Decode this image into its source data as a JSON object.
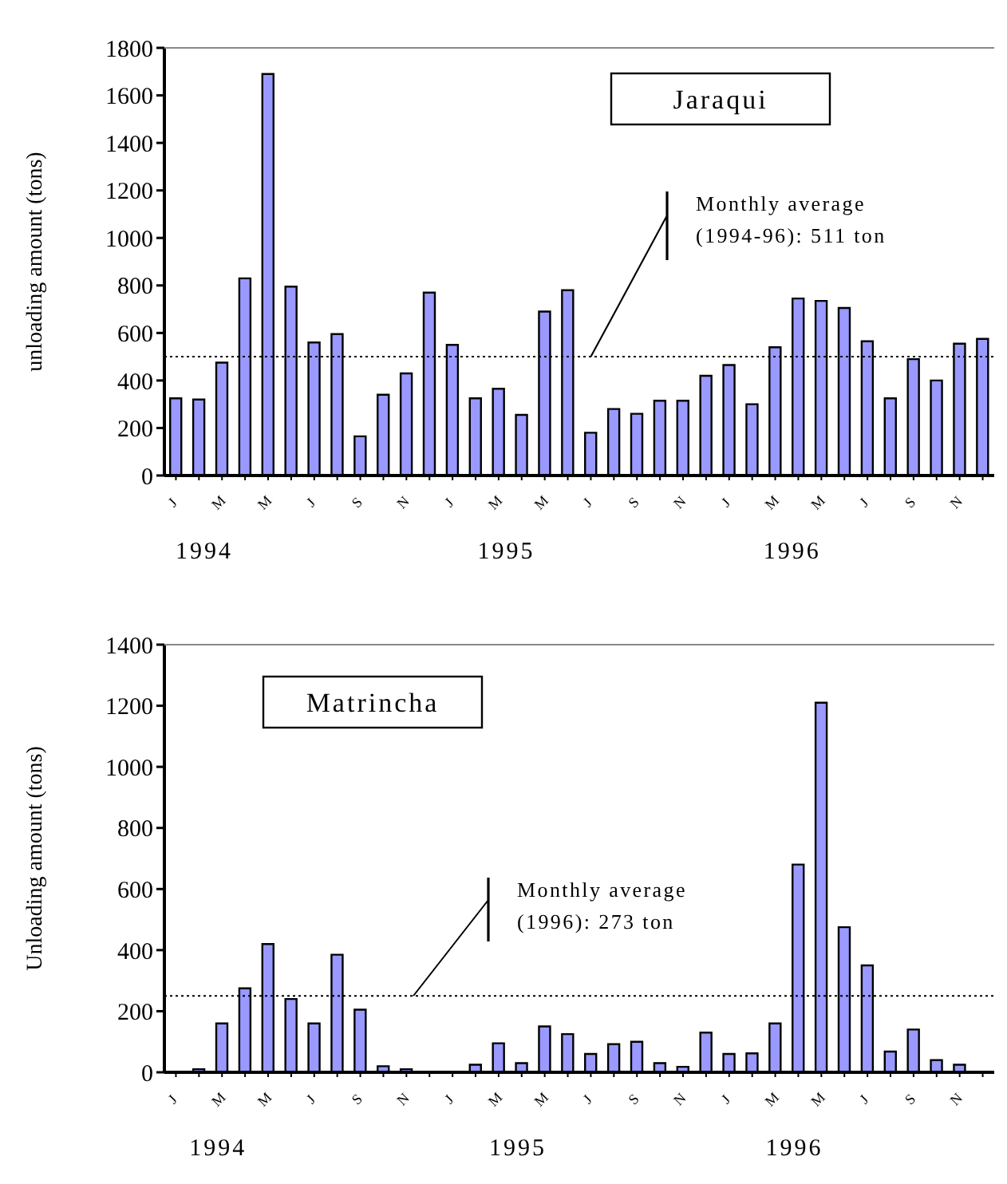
{
  "chart_data": [
    {
      "type": "bar",
      "title": "Jaraqui",
      "ylabel": "unloading amount (tons)",
      "categories": [
        "J",
        null,
        "M",
        null,
        "M",
        null,
        "J",
        null,
        "S",
        null,
        "N",
        null,
        "J",
        null,
        "M",
        null,
        "M",
        null,
        "J",
        null,
        "S",
        null,
        "N",
        null,
        "J",
        null,
        "M",
        null,
        "M",
        null,
        "J",
        null,
        "S",
        null,
        "N",
        null
      ],
      "values": [
        325,
        320,
        475,
        830,
        1690,
        795,
        560,
        595,
        165,
        340,
        430,
        770,
        550,
        325,
        365,
        255,
        690,
        780,
        180,
        280,
        260,
        315,
        315,
        420,
        465,
        300,
        540,
        745,
        735,
        705,
        565,
        325,
        490,
        400,
        555,
        575
      ],
      "color": "#9999ff",
      "ylim": [
        0,
        1800
      ],
      "yticks": [
        0,
        200,
        400,
        600,
        800,
        1000,
        1200,
        1400,
        1600,
        1800
      ],
      "ref_lines": [
        {
          "axis": "y",
          "value": 500,
          "line_style": "dotted"
        }
      ],
      "annotations": [
        "Monthly average\n(1994-96): 511 ton",
        "1994",
        "1995",
        "1996"
      ]
    },
    {
      "type": "bar",
      "title": "Matrincha",
      "ylabel": "Unloading amount (tons)",
      "categories": [
        "J",
        null,
        "M",
        null,
        "M",
        null,
        "J",
        null,
        "S",
        null,
        "N",
        null,
        "J",
        null,
        "M",
        null,
        "M",
        null,
        "J",
        null,
        "S",
        null,
        "N",
        null,
        "J",
        null,
        "M",
        null,
        "M",
        null,
        "J",
        null,
        "S",
        null,
        "N",
        null
      ],
      "values": [
        null,
        10,
        160,
        275,
        420,
        240,
        160,
        385,
        205,
        20,
        10,
        null,
        null,
        25,
        95,
        30,
        150,
        125,
        60,
        92,
        100,
        30,
        18,
        130,
        60,
        62,
        160,
        680,
        1210,
        475,
        350,
        68,
        140,
        40,
        25,
        null
      ],
      "color": "#9999ff",
      "ylim": [
        0,
        1400
      ],
      "yticks": [
        0,
        200,
        400,
        600,
        800,
        1000,
        1200,
        1400
      ],
      "ref_lines": [
        {
          "axis": "y",
          "value": 250,
          "line_style": "dotted"
        }
      ],
      "annotations": [
        "Monthly average\n(1996): 273 ton",
        "1994",
        "1995",
        "1996"
      ]
    }
  ]
}
